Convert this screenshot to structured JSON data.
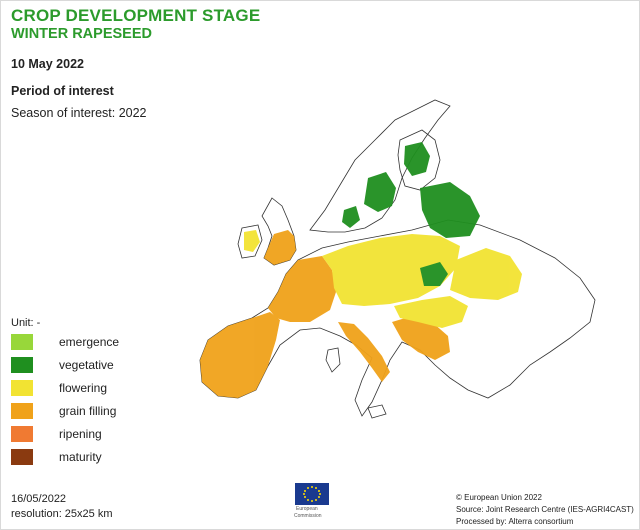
{
  "header": {
    "title": "CROP DEVELOPMENT STAGE",
    "subtitle": "WINTER RAPESEED",
    "date": "10 May 2022",
    "period_heading": "Period of interest",
    "season": "Season of interest: 2022"
  },
  "legend": {
    "unit": "Unit: -",
    "items": [
      {
        "label": "emergence",
        "color": "#98d73a"
      },
      {
        "label": "vegetative",
        "color": "#1f8f1f"
      },
      {
        "label": "flowering",
        "color": "#f2e332"
      },
      {
        "label": "grain filling",
        "color": "#f0a21a"
      },
      {
        "label": "ripening",
        "color": "#f07a32"
      },
      {
        "label": "maturity",
        "color": "#8a3a10"
      }
    ]
  },
  "footer": {
    "date": "16/05/2022",
    "resolution": "resolution:  25x25 km",
    "logo_line1": "European",
    "logo_line2": "Commission",
    "credit_1": "© European Union 2022",
    "credit_2": "Source: Joint Research Centre (IES-AGRI4CAST)",
    "credit_3": "Processed by: Alterra consortium"
  },
  "colors": {
    "title_green": "#2c9b2c",
    "border": "#333333",
    "eu_blue": "#1a3a8f",
    "eu_star": "#ffdd00"
  }
}
